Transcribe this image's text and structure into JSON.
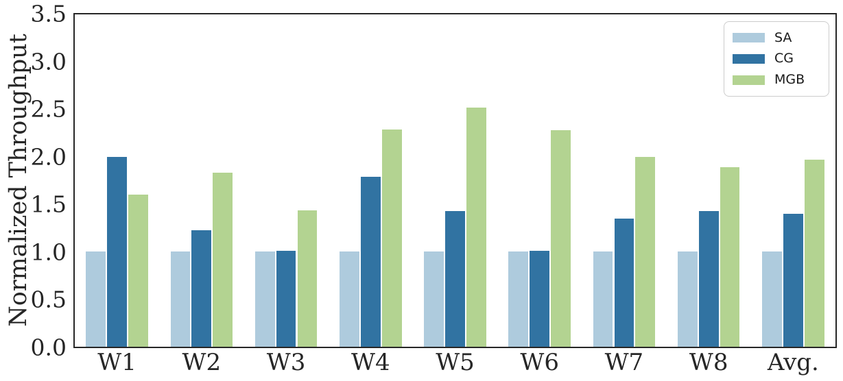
{
  "chart_data": {
    "type": "bar",
    "title": "",
    "xlabel": "",
    "ylabel": "Normalized Throughput",
    "categories": [
      "W1",
      "W2",
      "W3",
      "W4",
      "W5",
      "W6",
      "W7",
      "W8",
      "Avg."
    ],
    "series": [
      {
        "name": "SA",
        "color": "#aecbdd",
        "values": [
          1.0,
          1.0,
          1.0,
          1.0,
          1.0,
          1.0,
          1.0,
          1.0,
          1.0
        ]
      },
      {
        "name": "CG",
        "color": "#3173a2",
        "values": [
          2.0,
          1.23,
          1.01,
          1.79,
          1.43,
          1.01,
          1.35,
          1.43,
          1.4
        ]
      },
      {
        "name": "MGB",
        "color": "#b3d391",
        "values": [
          1.6,
          1.83,
          1.44,
          2.29,
          2.52,
          2.28,
          2.0,
          1.89,
          1.97
        ]
      }
    ],
    "ylim": [
      0,
      3.5
    ],
    "yticks": [
      "0.0",
      "0.5",
      "1.0",
      "1.5",
      "2.0",
      "2.5",
      "3.0",
      "3.5"
    ],
    "grid": false,
    "legend_position": "upper right",
    "spine_color": "#262626"
  }
}
